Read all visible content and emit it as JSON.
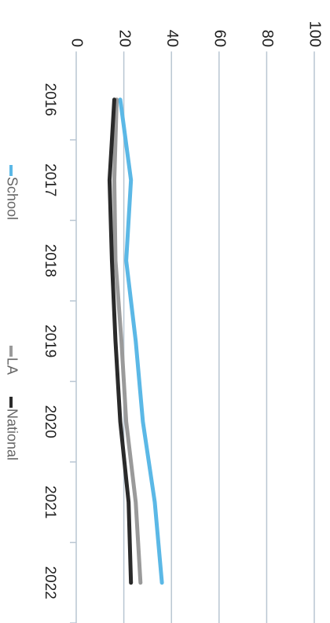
{
  "chart_data": {
    "type": "line",
    "categories": [
      "2016",
      "2017",
      "2018",
      "2019",
      "2020",
      "2021",
      "2022"
    ],
    "series": [
      {
        "name": "School",
        "color": "#5bb8e6",
        "values": [
          18.5,
          23,
          21,
          25,
          28,
          33,
          36
        ]
      },
      {
        "name": "LA",
        "color": "#9a9a9a",
        "values": [
          17,
          16,
          16.5,
          19,
          21,
          25,
          27
        ]
      },
      {
        "name": "National",
        "color": "#2a2a2a",
        "values": [
          16,
          14,
          15,
          16.5,
          18.5,
          22,
          23
        ]
      }
    ],
    "ylim": [
      0,
      100
    ],
    "yticks": [
      0,
      20,
      40,
      60,
      80,
      100
    ],
    "grid": true,
    "legend": "bottom"
  }
}
